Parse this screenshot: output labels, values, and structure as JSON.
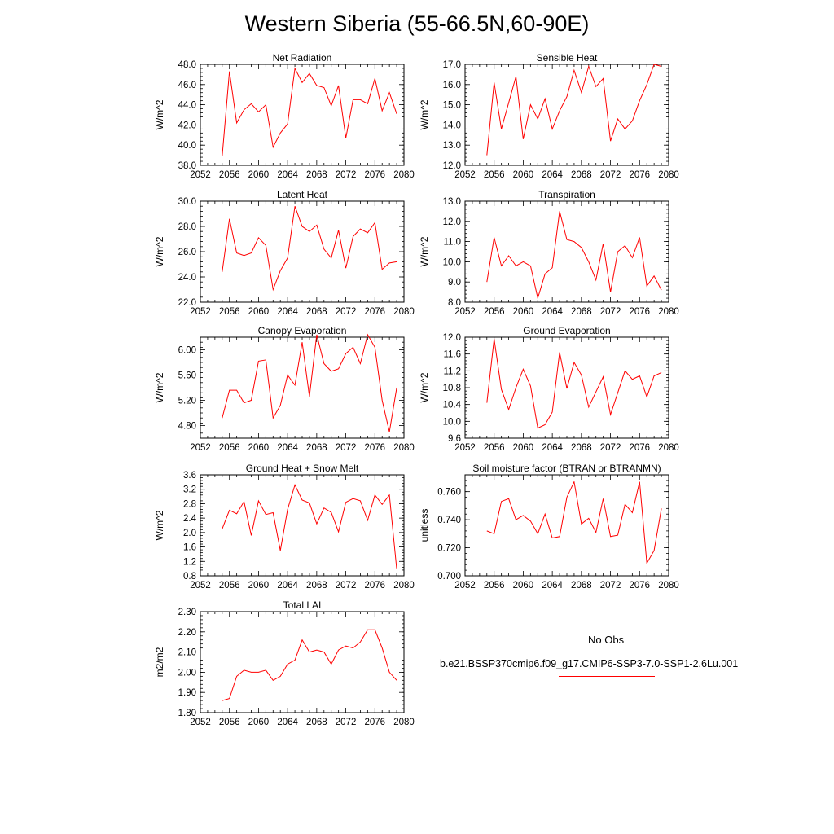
{
  "title": "Western Siberia (55-66.5N,60-90E)",
  "legend": {
    "obs_label": "No Obs",
    "obs_color": "#3b3bd0",
    "model_label": "b.e21.BSSP370cmip6.f09_g17.CMIP6-SSP3-7.0-SSP1-2.6Lu.001",
    "model_color": "#ff0000"
  },
  "chart_data": [
    {
      "type": "line",
      "title": "Net Radiation",
      "ylabel": "W/m^2",
      "xlim": [
        2052,
        2080
      ],
      "ylim": [
        38.0,
        48.0
      ],
      "xticks": [
        "2052",
        "2056",
        "2060",
        "2064",
        "2068",
        "2072",
        "2076",
        "2080"
      ],
      "yticks": [
        "38.0",
        "40.0",
        "42.0",
        "44.0",
        "46.0",
        "48.0"
      ],
      "x": [
        2055,
        2056,
        2057,
        2058,
        2059,
        2060,
        2061,
        2062,
        2063,
        2064,
        2065,
        2066,
        2067,
        2068,
        2069,
        2070,
        2071,
        2072,
        2073,
        2074,
        2075,
        2076,
        2077,
        2078,
        2079
      ],
      "series": [
        {
          "values": [
            38.9,
            47.3,
            42.2,
            43.5,
            44.1,
            43.3,
            44.0,
            39.8,
            41.2,
            42.1,
            47.6,
            46.2,
            47.1,
            45.9,
            45.7,
            43.9,
            45.9,
            40.7,
            44.5,
            44.5,
            44.1,
            46.6,
            43.4,
            45.2,
            43.1
          ]
        }
      ]
    },
    {
      "type": "line",
      "title": "Sensible Heat",
      "ylabel": "W/m^2",
      "xlim": [
        2052,
        2080
      ],
      "ylim": [
        12.0,
        17.0
      ],
      "xticks": [
        "2052",
        "2056",
        "2060",
        "2064",
        "2068",
        "2072",
        "2076",
        "2080"
      ],
      "yticks": [
        "12.0",
        "13.0",
        "14.0",
        "15.0",
        "16.0",
        "17.0"
      ],
      "x": [
        2055,
        2056,
        2057,
        2058,
        2059,
        2060,
        2061,
        2062,
        2063,
        2064,
        2065,
        2066,
        2067,
        2068,
        2069,
        2070,
        2071,
        2072,
        2073,
        2074,
        2075,
        2076,
        2077,
        2078,
        2079
      ],
      "series": [
        {
          "values": [
            12.5,
            16.1,
            13.8,
            15.1,
            16.4,
            13.3,
            15.0,
            14.3,
            15.3,
            13.8,
            14.7,
            15.4,
            16.7,
            15.6,
            16.9,
            15.9,
            16.3,
            13.2,
            14.3,
            13.8,
            14.2,
            15.2,
            16.0,
            17.0,
            16.9
          ]
        }
      ]
    },
    {
      "type": "line",
      "title": "Latent Heat",
      "ylabel": "W/m^2",
      "xlim": [
        2052,
        2080
      ],
      "ylim": [
        22.0,
        30.0
      ],
      "xticks": [
        "2052",
        "2056",
        "2060",
        "2064",
        "2068",
        "2072",
        "2076",
        "2080"
      ],
      "yticks": [
        "22.0",
        "24.0",
        "26.0",
        "28.0",
        "30.0"
      ],
      "x": [
        2055,
        2056,
        2057,
        2058,
        2059,
        2060,
        2061,
        2062,
        2063,
        2064,
        2065,
        2066,
        2067,
        2068,
        2069,
        2070,
        2071,
        2072,
        2073,
        2074,
        2075,
        2076,
        2077,
        2078,
        2079
      ],
      "series": [
        {
          "values": [
            24.4,
            28.6,
            25.9,
            25.7,
            25.9,
            27.1,
            26.5,
            23.0,
            24.5,
            25.5,
            29.6,
            28.0,
            27.6,
            28.1,
            26.2,
            25.5,
            27.7,
            24.7,
            27.2,
            27.8,
            27.5,
            28.3,
            24.6,
            25.1,
            25.2
          ]
        }
      ]
    },
    {
      "type": "line",
      "title": "Transpiration",
      "ylabel": "W/m^2",
      "xlim": [
        2052,
        2080
      ],
      "ylim": [
        8.0,
        13.0
      ],
      "xticks": [
        "2052",
        "2056",
        "2060",
        "2064",
        "2068",
        "2072",
        "2076",
        "2080"
      ],
      "yticks": [
        "8.0",
        "9.0",
        "10.0",
        "11.0",
        "12.0",
        "13.0"
      ],
      "x": [
        2055,
        2056,
        2057,
        2058,
        2059,
        2060,
        2061,
        2062,
        2063,
        2064,
        2065,
        2066,
        2067,
        2068,
        2069,
        2070,
        2071,
        2072,
        2073,
        2074,
        2075,
        2076,
        2077,
        2078,
        2079
      ],
      "series": [
        {
          "values": [
            9.0,
            11.2,
            9.8,
            10.3,
            9.8,
            10.0,
            9.8,
            8.2,
            9.4,
            9.7,
            12.5,
            11.1,
            11.0,
            10.7,
            10.0,
            9.1,
            10.9,
            8.5,
            10.5,
            10.8,
            10.2,
            11.2,
            8.8,
            9.3,
            8.6
          ]
        }
      ]
    },
    {
      "type": "line",
      "title": "Canopy Evaporation",
      "ylabel": "W/m^2",
      "xlim": [
        2052,
        2080
      ],
      "ylim": [
        4.6,
        6.2
      ],
      "xticks": [
        "2052",
        "2056",
        "2060",
        "2064",
        "2068",
        "2072",
        "2076",
        "2080"
      ],
      "yticks": [
        "4.80",
        "5.20",
        "5.60",
        "6.00"
      ],
      "x": [
        2055,
        2056,
        2057,
        2058,
        2059,
        2060,
        2061,
        2062,
        2063,
        2064,
        2065,
        2066,
        2067,
        2068,
        2069,
        2070,
        2071,
        2072,
        2073,
        2074,
        2075,
        2076,
        2077,
        2078,
        2079
      ],
      "series": [
        {
          "values": [
            4.92,
            5.36,
            5.36,
            5.16,
            5.2,
            5.82,
            5.84,
            4.92,
            5.12,
            5.6,
            5.44,
            6.12,
            5.26,
            6.24,
            5.78,
            5.66,
            5.7,
            5.94,
            6.04,
            5.78,
            6.24,
            6.04,
            5.2,
            4.7,
            5.4
          ]
        }
      ]
    },
    {
      "type": "line",
      "title": "Ground Evaporation",
      "ylabel": "W/m^2",
      "xlim": [
        2052,
        2080
      ],
      "ylim": [
        9.6,
        12.0
      ],
      "xticks": [
        "2052",
        "2056",
        "2060",
        "2064",
        "2068",
        "2072",
        "2076",
        "2080"
      ],
      "yticks": [
        "9.6",
        "10.0",
        "10.4",
        "10.8",
        "11.2",
        "11.6",
        "12.0"
      ],
      "x": [
        2055,
        2056,
        2057,
        2058,
        2059,
        2060,
        2061,
        2062,
        2063,
        2064,
        2065,
        2066,
        2067,
        2068,
        2069,
        2070,
        2071,
        2072,
        2073,
        2074,
        2075,
        2076,
        2077,
        2078,
        2079
      ],
      "series": [
        {
          "values": [
            10.44,
            11.96,
            10.76,
            10.28,
            10.8,
            11.24,
            10.84,
            9.84,
            9.92,
            10.22,
            11.64,
            10.78,
            11.4,
            11.1,
            10.34,
            10.7,
            11.06,
            10.16,
            10.68,
            11.2,
            11.0,
            11.08,
            10.58,
            11.08,
            11.16
          ]
        }
      ]
    },
    {
      "type": "line",
      "title": "Ground Heat + Snow Melt",
      "ylabel": "W/m^2",
      "xlim": [
        2052,
        2080
      ],
      "ylim": [
        0.8,
        3.6
      ],
      "xticks": [
        "2052",
        "2056",
        "2060",
        "2064",
        "2068",
        "2072",
        "2076",
        "2080"
      ],
      "yticks": [
        "0.8",
        "1.2",
        "1.6",
        "2.0",
        "2.4",
        "2.8",
        "3.2",
        "3.6"
      ],
      "x": [
        2055,
        2056,
        2057,
        2058,
        2059,
        2060,
        2061,
        2062,
        2063,
        2064,
        2065,
        2066,
        2067,
        2068,
        2069,
        2070,
        2071,
        2072,
        2073,
        2074,
        2075,
        2076,
        2077,
        2078,
        2079
      ],
      "series": [
        {
          "values": [
            2.1,
            2.62,
            2.52,
            2.86,
            1.92,
            2.88,
            2.5,
            2.55,
            1.5,
            2.64,
            3.32,
            2.9,
            2.82,
            2.24,
            2.68,
            2.56,
            2.02,
            2.84,
            2.94,
            2.88,
            2.34,
            3.04,
            2.78,
            3.04,
            0.98
          ]
        }
      ]
    },
    {
      "type": "line",
      "title": "Soil moisture factor (BTRAN or BTRANMN)",
      "ylabel": "unitless",
      "xlim": [
        2052,
        2080
      ],
      "ylim": [
        0.7,
        0.772
      ],
      "xticks": [
        "2052",
        "2056",
        "2060",
        "2064",
        "2068",
        "2072",
        "2076",
        "2080"
      ],
      "yticks": [
        "0.700",
        "0.720",
        "0.740",
        "0.760"
      ],
      "x": [
        2055,
        2056,
        2057,
        2058,
        2059,
        2060,
        2061,
        2062,
        2063,
        2064,
        2065,
        2066,
        2067,
        2068,
        2069,
        2070,
        2071,
        2072,
        2073,
        2074,
        2075,
        2076,
        2077,
        2078,
        2079
      ],
      "series": [
        {
          "values": [
            0.732,
            0.73,
            0.753,
            0.755,
            0.74,
            0.743,
            0.739,
            0.73,
            0.744,
            0.727,
            0.728,
            0.756,
            0.767,
            0.737,
            0.741,
            0.731,
            0.755,
            0.728,
            0.729,
            0.751,
            0.745,
            0.767,
            0.709,
            0.718,
            0.748
          ]
        }
      ]
    },
    {
      "type": "line",
      "title": "Total LAI",
      "ylabel": "m2/m2",
      "xlim": [
        2052,
        2080
      ],
      "ylim": [
        1.8,
        2.3
      ],
      "xticks": [
        "2052",
        "2056",
        "2060",
        "2064",
        "2068",
        "2072",
        "2076",
        "2080"
      ],
      "yticks": [
        "1.80",
        "1.90",
        "2.00",
        "2.10",
        "2.20",
        "2.30"
      ],
      "x": [
        2055,
        2056,
        2057,
        2058,
        2059,
        2060,
        2061,
        2062,
        2063,
        2064,
        2065,
        2066,
        2067,
        2068,
        2069,
        2070,
        2071,
        2072,
        2073,
        2074,
        2075,
        2076,
        2077,
        2078,
        2079
      ],
      "series": [
        {
          "values": [
            1.86,
            1.87,
            1.98,
            2.01,
            2.0,
            2.0,
            2.01,
            1.96,
            1.98,
            2.04,
            2.06,
            2.16,
            2.1,
            2.11,
            2.1,
            2.04,
            2.11,
            2.13,
            2.12,
            2.15,
            2.21,
            2.21,
            2.12,
            2.0,
            1.96
          ]
        }
      ]
    }
  ]
}
